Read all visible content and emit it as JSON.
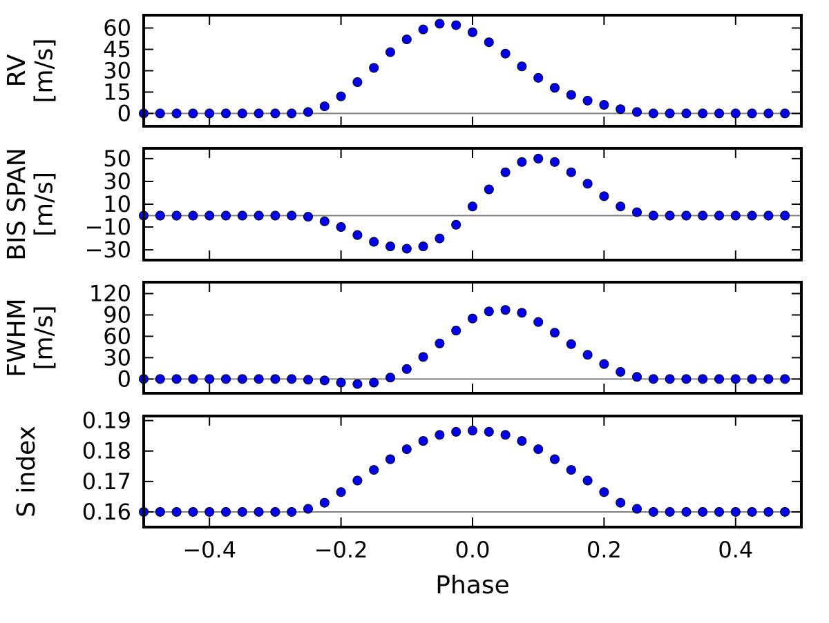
{
  "chart_data": {
    "type": "scatter",
    "xlabel": "Phase",
    "xlim": [
      -0.5,
      0.5
    ],
    "xticks": [
      -0.4,
      -0.2,
      0.0,
      0.2,
      0.4
    ],
    "xtick_labels": [
      "−0.4",
      "−0.2",
      "0.0",
      "0.2",
      "0.4"
    ],
    "x": [
      -0.5,
      -0.475,
      -0.45,
      -0.425,
      -0.4,
      -0.375,
      -0.35,
      -0.325,
      -0.3,
      -0.275,
      -0.25,
      -0.225,
      -0.2,
      -0.175,
      -0.15,
      -0.125,
      -0.1,
      -0.075,
      -0.05,
      -0.025,
      0.0,
      0.025,
      0.05,
      0.075,
      0.1,
      0.125,
      0.15,
      0.175,
      0.2,
      0.225,
      0.25,
      0.275,
      0.3,
      0.325,
      0.35,
      0.375,
      0.4,
      0.425,
      0.45,
      0.475
    ],
    "marker_color": "#0000ee",
    "zero_line_color": "#808080",
    "panels": [
      {
        "name": "rv",
        "ylabel": "RV\n[m/s]",
        "ylim": [
          -9,
          69
        ],
        "yticks": [
          0,
          15,
          30,
          45,
          60
        ],
        "ytick_labels": [
          "0",
          "15",
          "30",
          "45",
          "60"
        ],
        "reference_line": 0,
        "values": [
          0,
          0,
          0,
          0,
          0,
          0,
          0,
          0,
          0,
          0,
          1,
          5,
          12,
          22,
          32,
          43,
          52,
          59,
          63,
          62,
          57,
          50,
          42,
          33,
          25,
          18,
          13,
          9,
          6,
          3,
          1,
          0,
          0,
          0,
          0,
          0,
          0,
          0,
          0,
          0
        ]
      },
      {
        "name": "bis-span",
        "ylabel": "BIS SPAN\n[m/s]",
        "ylim": [
          -39,
          59
        ],
        "yticks": [
          -30,
          -10,
          10,
          30,
          50
        ],
        "ytick_labels": [
          "−30",
          "−10",
          "10",
          "30",
          "50"
        ],
        "reference_line": 0,
        "values": [
          0,
          0,
          0,
          0,
          0,
          0,
          0,
          0,
          0,
          0,
          -1,
          -5,
          -10,
          -17,
          -23,
          -27,
          -29,
          -27,
          -20,
          -8,
          8,
          23,
          38,
          47,
          50,
          47,
          38,
          28,
          17,
          8,
          3,
          0,
          0,
          0,
          0,
          0,
          0,
          0,
          0,
          0
        ]
      },
      {
        "name": "fwhm",
        "ylabel": "FWHM\n[m/s]",
        "ylim": [
          -20,
          136
        ],
        "yticks": [
          0,
          30,
          60,
          90,
          120
        ],
        "ytick_labels": [
          "0",
          "30",
          "60",
          "90",
          "120"
        ],
        "reference_line": 0,
        "values": [
          0,
          0,
          0,
          0,
          0,
          0,
          0,
          0,
          0,
          0,
          -1,
          -2,
          -5,
          -7,
          -5,
          2,
          14,
          31,
          50,
          68,
          85,
          95,
          97,
          93,
          80,
          65,
          49,
          34,
          21,
          10,
          3,
          0,
          0,
          0,
          0,
          0,
          0,
          0,
          0,
          0
        ]
      },
      {
        "name": "s-index",
        "ylabel": "S index",
        "ylim": [
          0.155,
          0.1915
        ],
        "yticks": [
          0.16,
          0.17,
          0.18,
          0.19
        ],
        "ytick_labels": [
          "0.16",
          "0.17",
          "0.18",
          "0.19"
        ],
        "reference_line": 0.16,
        "values": [
          0.16,
          0.16,
          0.16,
          0.16,
          0.16,
          0.16,
          0.16,
          0.16,
          0.16,
          0.16,
          0.161,
          0.163,
          0.1665,
          0.1703,
          0.1738,
          0.1773,
          0.1806,
          0.1833,
          0.1853,
          0.1863,
          0.1867,
          0.1863,
          0.1853,
          0.1833,
          0.1806,
          0.1773,
          0.1738,
          0.1703,
          0.1665,
          0.163,
          0.161,
          0.16,
          0.16,
          0.16,
          0.16,
          0.16,
          0.16,
          0.16,
          0.16,
          0.16
        ]
      }
    ]
  }
}
